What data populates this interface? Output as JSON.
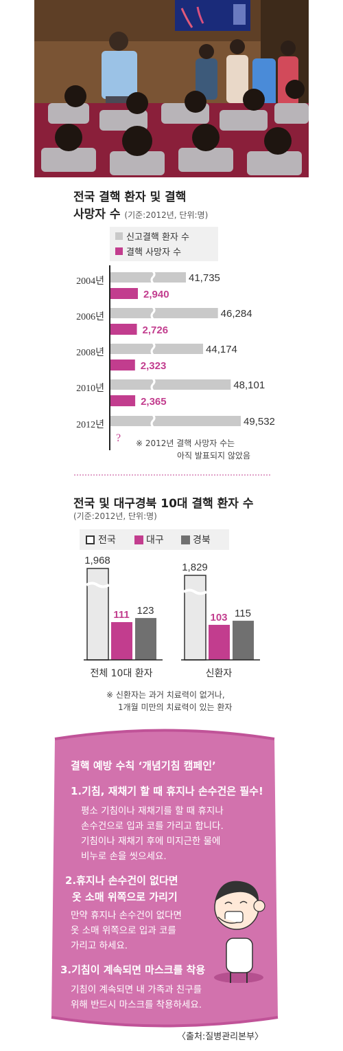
{
  "photo": {
    "screen_icons": [
      "bacteria-slide-image",
      "screen-arrow-icon"
    ]
  },
  "chart1": {
    "title_line1": "전국 결핵 환자 및 결핵",
    "title_line2": "사망자 수",
    "subtitle": "(기준:2012년, 단위:명)",
    "legend_gray": "신고결핵 환자 수",
    "legend_pink": "결핵 사망자 수",
    "footnote_line1": "※ 2012년 결핵 사망자 수는",
    "footnote_line2": "아직 발표되지 않았음",
    "unknown_mark": "?",
    "colors": {
      "gray": "#c9c9c9",
      "pink": "#c23d8e"
    }
  },
  "chart2": {
    "title": "전국 및 대구경북 10대 결핵 환자 수",
    "subtitle": "(기준:2012년, 단위:명)",
    "legend": [
      "전국",
      "대구",
      "경북"
    ],
    "footnote_line1": "※ 신환자는 과거 치료력이 없거나,",
    "footnote_line2": "1개월 미만의 치료력이 있는 환자",
    "colors": {
      "national": "#e9e9e9",
      "daegu": "#c23d8e",
      "gyeongbuk": "#707070"
    }
  },
  "chart_data": [
    {
      "type": "bar",
      "orientation": "horizontal",
      "title": "전국 결핵 환자 및 결핵 사망자 수",
      "subtitle": "(기준:2012년, 단위:명)",
      "categories": [
        "2004년",
        "2006년",
        "2008년",
        "2010년",
        "2012년"
      ],
      "series": [
        {
          "name": "신고결핵 환자 수",
          "values": [
            41735,
            46284,
            44174,
            48101,
            49532
          ],
          "labels": [
            "41,735",
            "46,284",
            "44,174",
            "48,101",
            "49,532"
          ]
        },
        {
          "name": "결핵 사망자 수",
          "values": [
            2940,
            2726,
            2323,
            2365,
            null
          ],
          "labels": [
            "2,940",
            "2,726",
            "2,323",
            "2,365",
            "?"
          ]
        }
      ],
      "axis_break": true,
      "legend_position": "top"
    },
    {
      "type": "bar",
      "title": "전국 및 대구경북 10대 결핵 환자 수",
      "subtitle": "(기준:2012년, 단위:명)",
      "categories": [
        "전체 10대 환자",
        "신환자"
      ],
      "series": [
        {
          "name": "전국",
          "values": [
            1968,
            1829
          ],
          "labels": [
            "1,968",
            "1,829"
          ]
        },
        {
          "name": "대구",
          "values": [
            111,
            103
          ],
          "labels": [
            "111",
            "103"
          ]
        },
        {
          "name": "경북",
          "values": [
            123,
            115
          ],
          "labels": [
            "123",
            "115"
          ]
        }
      ],
      "axis_break": true,
      "legend_position": "top"
    }
  ],
  "campaign": {
    "title": "결핵 예방 수칙 ‘개념기침 캠페인’",
    "rule1_head": "1.기침, 재채기 할 때 휴지나 손수건은 필수!",
    "rule1_body": [
      "평소 기침이나 재채기를 할 때 휴지나",
      "손수건으로 입과 코를 가리고 합니다.",
      "기침이나 재채기 후에 미지근한 물에",
      "비누로 손을 씻으세요."
    ],
    "rule2_head": [
      "2.휴지나 손수건이 없다면",
      "옷 소매 위쪽으로 가리기"
    ],
    "rule2_body": [
      "만약 휴지나 손수건이 없다면",
      "옷 소매 위쪽으로 입과 코를",
      "가리고 하세요."
    ],
    "rule3_head": "3.기침이 계속되면 마스크를 착용",
    "rule3_body": [
      "기침이 계속되면 내 가족과 친구를",
      "위해 반드시 마스크를 착용하세요."
    ],
    "source": "〈출처:질병관리본부〉",
    "color": "#c8579c"
  }
}
